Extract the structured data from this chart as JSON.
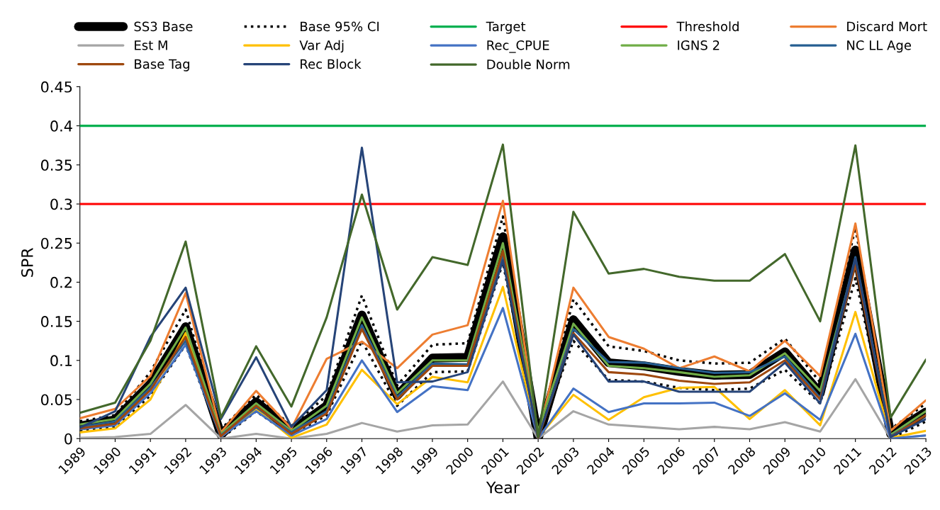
{
  "chart_data": {
    "type": "line",
    "xlabel": "Year",
    "ylabel": "SPR",
    "categories": [
      "1989",
      "1990",
      "1991",
      "1992",
      "1993",
      "1994",
      "1995",
      "1996",
      "1997",
      "1998",
      "1999",
      "2000",
      "2001",
      "2002",
      "2003",
      "2004",
      "2005",
      "2006",
      "2007",
      "2008",
      "2009",
      "2010",
      "2011",
      "2012",
      "2013"
    ],
    "ylim": [
      0,
      0.45
    ],
    "yticks": [
      {
        "value": 0,
        "label": "0"
      },
      0.05,
      0.1,
      0.15,
      0.2,
      0.25,
      0.3,
      0.35,
      0.4,
      0.45
    ],
    "grid": false,
    "legend": "top",
    "line_style": "solid",
    "marker": "none",
    "series": [
      {
        "name": "SS3 Base",
        "color": "#000000",
        "values": [
          0.016,
          0.024,
          0.07,
          0.143,
          0.005,
          0.047,
          0.01,
          0.042,
          0.158,
          0.055,
          0.103,
          0.104,
          0.258,
          0.0,
          0.152,
          0.097,
          0.093,
          0.086,
          0.081,
          0.082,
          0.111,
          0.058,
          0.241,
          0.006,
          0.034
        ]
      },
      {
        "name": "Base 95% CI",
        "color": "#000000",
        "line_style": "dotted",
        "values": [
          0.022,
          0.03,
          0.085,
          0.165,
          0.012,
          0.056,
          0.016,
          0.055,
          0.183,
          0.068,
          0.12,
          0.122,
          0.284,
          0.005,
          0.178,
          0.118,
          0.112,
          0.1,
          0.096,
          0.097,
          0.128,
          0.072,
          0.27,
          0.012,
          0.045
        ]
      },
      {
        "color": "#000000",
        "line_style": "dotted",
        "values": [
          0.01,
          0.015,
          0.055,
          0.12,
          0.0,
          0.035,
          0.004,
          0.03,
          0.125,
          0.042,
          0.085,
          0.086,
          0.225,
          0.0,
          0.125,
          0.075,
          0.073,
          0.065,
          0.062,
          0.064,
          0.088,
          0.045,
          0.205,
          0.0,
          0.022
        ]
      },
      {
        "name": "Target",
        "color": "#00b050",
        "values": [
          0.4,
          0.4,
          0.4,
          0.4,
          0.4,
          0.4,
          0.4,
          0.4,
          0.4,
          0.4,
          0.4,
          0.4,
          0.4,
          0.4,
          0.4,
          0.4,
          0.4,
          0.4,
          0.4,
          0.4,
          0.4,
          0.4,
          0.4,
          0.4,
          0.4
        ]
      },
      {
        "name": "Threshold",
        "color": "#ff0000",
        "values": [
          0.3,
          0.3,
          0.3,
          0.3,
          0.3,
          0.3,
          0.3,
          0.3,
          0.3,
          0.3,
          0.3,
          0.3,
          0.3,
          0.3,
          0.3,
          0.3,
          0.3,
          0.3,
          0.3,
          0.3,
          0.3,
          0.3,
          0.3,
          0.3,
          0.3
        ]
      },
      {
        "name": "Discard Mort",
        "color": "#ed7d31",
        "values": [
          0.026,
          0.038,
          0.08,
          0.186,
          0.008,
          0.061,
          0.013,
          0.102,
          0.124,
          0.09,
          0.133,
          0.145,
          0.304,
          0.003,
          0.193,
          0.13,
          0.115,
          0.09,
          0.105,
          0.086,
          0.125,
          0.08,
          0.275,
          0.01,
          0.049
        ]
      },
      {
        "name": "Est M",
        "color": "#a5a5a5",
        "values": [
          0.001,
          0.002,
          0.006,
          0.043,
          0.0,
          0.006,
          0.0,
          0.006,
          0.02,
          0.009,
          0.017,
          0.018,
          0.073,
          0.0,
          0.035,
          0.018,
          0.015,
          0.012,
          0.015,
          0.012,
          0.021,
          0.009,
          0.076,
          0.0,
          0.004
        ]
      },
      {
        "name": "Var Adj",
        "color": "#ffc000",
        "values": [
          0.008,
          0.013,
          0.05,
          0.135,
          0.002,
          0.038,
          0.001,
          0.018,
          0.088,
          0.044,
          0.079,
          0.072,
          0.194,
          0.001,
          0.056,
          0.024,
          0.053,
          0.065,
          0.066,
          0.025,
          0.062,
          0.017,
          0.162,
          0.001,
          0.01
        ]
      },
      {
        "name": "Rec_CPUE",
        "color": "#4472c4",
        "values": [
          0.012,
          0.017,
          0.058,
          0.12,
          0.002,
          0.035,
          0.004,
          0.025,
          0.1,
          0.034,
          0.067,
          0.062,
          0.167,
          0.0,
          0.064,
          0.034,
          0.045,
          0.045,
          0.046,
          0.029,
          0.058,
          0.024,
          0.134,
          0.0,
          0.004
        ]
      },
      {
        "name": "IGNS 2",
        "color": "#70ad47",
        "values": [
          0.018,
          0.025,
          0.07,
          0.142,
          0.006,
          0.045,
          0.01,
          0.042,
          0.155,
          0.058,
          0.1,
          0.1,
          0.25,
          0.01,
          0.147,
          0.093,
          0.09,
          0.085,
          0.079,
          0.081,
          0.109,
          0.061,
          0.228,
          0.005,
          0.035
        ]
      },
      {
        "name": "NC LL Age",
        "color": "#255e91",
        "values": [
          0.015,
          0.022,
          0.065,
          0.125,
          0.004,
          0.04,
          0.008,
          0.035,
          0.145,
          0.053,
          0.096,
          0.095,
          0.235,
          0.0,
          0.14,
          0.098,
          0.097,
          0.09,
          0.084,
          0.085,
          0.105,
          0.052,
          0.232,
          0.003,
          0.03
        ]
      },
      {
        "name": "Base Tag",
        "color": "#9e480e",
        "values": [
          0.013,
          0.019,
          0.062,
          0.13,
          0.003,
          0.042,
          0.006,
          0.032,
          0.14,
          0.05,
          0.093,
          0.093,
          0.24,
          0.0,
          0.135,
          0.085,
          0.082,
          0.074,
          0.07,
          0.072,
          0.1,
          0.05,
          0.222,
          0.002,
          0.03
        ]
      },
      {
        "name": "Rec Block",
        "color": "#264478",
        "values": [
          0.014,
          0.035,
          0.13,
          0.193,
          0.025,
          0.104,
          0.015,
          0.062,
          0.372,
          0.072,
          0.073,
          0.085,
          0.228,
          0.002,
          0.133,
          0.073,
          0.073,
          0.06,
          0.06,
          0.06,
          0.097,
          0.045,
          0.23,
          0.002,
          0.025
        ]
      },
      {
        "name": "Double Norm",
        "color": "#43682b",
        "values": [
          0.033,
          0.046,
          0.125,
          0.252,
          0.027,
          0.118,
          0.041,
          0.155,
          0.312,
          0.165,
          0.232,
          0.222,
          0.376,
          0.002,
          0.29,
          0.211,
          0.217,
          0.207,
          0.202,
          0.202,
          0.236,
          0.15,
          0.375,
          0.027,
          0.101
        ]
      }
    ]
  }
}
